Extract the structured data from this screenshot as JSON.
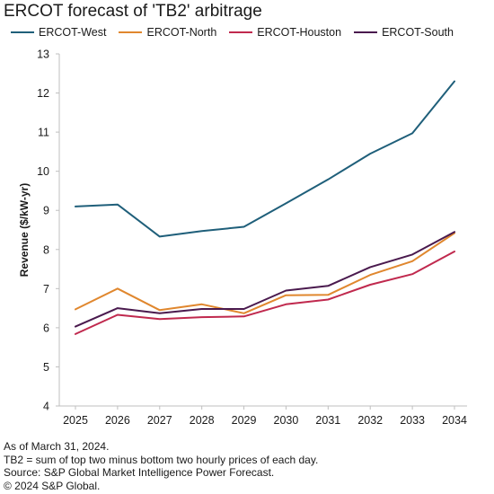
{
  "title": "ERCOT forecast of 'TB2' arbitrage",
  "footnotes": [
    "As of March 31, 2024.",
    "TB2 = sum of top two minus bottom two hourly prices of each day.",
    "Source: S&P Global Market Intelligence Power Forecast.",
    "© 2024 S&P Global."
  ],
  "chart_data": {
    "type": "line",
    "title": "ERCOT forecast of 'TB2' arbitrage",
    "xlabel": "",
    "ylabel": "Revenue ($/kW-yr)",
    "x": [
      "2025",
      "2026",
      "2027",
      "2028",
      "2029",
      "2030",
      "2031",
      "2032",
      "2033",
      "2034"
    ],
    "ylim": [
      4,
      13
    ],
    "yticks": [
      4,
      5,
      6,
      7,
      8,
      9,
      10,
      11,
      12,
      13
    ],
    "grid": false,
    "legend_position": "top",
    "series": [
      {
        "name": "ERCOT-West",
        "color": "#1f5f7a",
        "values": [
          9.1,
          9.15,
          8.33,
          8.47,
          8.58,
          9.18,
          9.79,
          10.45,
          10.97,
          12.3
        ]
      },
      {
        "name": "ERCOT-North",
        "color": "#e0872e",
        "values": [
          6.47,
          7.0,
          6.45,
          6.6,
          6.37,
          6.83,
          6.84,
          7.35,
          7.7,
          8.42
        ]
      },
      {
        "name": "ERCOT-Houston",
        "color": "#c0294e",
        "values": [
          5.84,
          6.33,
          6.22,
          6.27,
          6.29,
          6.6,
          6.72,
          7.1,
          7.37,
          7.95
        ]
      },
      {
        "name": "ERCOT-South",
        "color": "#4a1a4e",
        "values": [
          6.03,
          6.5,
          6.37,
          6.48,
          6.48,
          6.95,
          7.07,
          7.55,
          7.87,
          8.45
        ]
      }
    ]
  }
}
